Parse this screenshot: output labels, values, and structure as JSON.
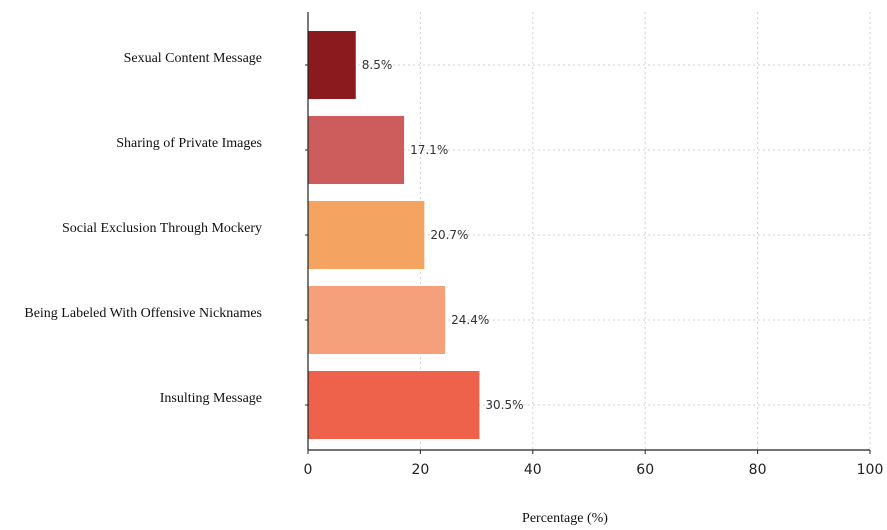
{
  "chart_data": {
    "type": "bar",
    "orientation": "horizontal",
    "categories": [
      "Sexual Content Message",
      "Sharing of Private Images",
      "Social Exclusion Through Mockery",
      "Being Labeled With Offensive Nicknames",
      "Insulting Message"
    ],
    "values": [
      8.5,
      17.1,
      20.7,
      24.4,
      30.5
    ],
    "value_labels": [
      "8.5%",
      "17.1%",
      "20.7%",
      "24.4%",
      "30.5%"
    ],
    "colors": [
      "#8b1a1e",
      "#cd5c5c",
      "#f4a460",
      "#f5a07a",
      "#ee614a"
    ],
    "title": "",
    "xlabel": "Percentage (%)",
    "ylabel": "",
    "xlim": [
      0,
      100
    ],
    "xticks": [
      0,
      20,
      40,
      60,
      80,
      100
    ],
    "xtick_labels": [
      "0",
      "20",
      "40",
      "60",
      "80",
      "100"
    ],
    "grid": true
  }
}
